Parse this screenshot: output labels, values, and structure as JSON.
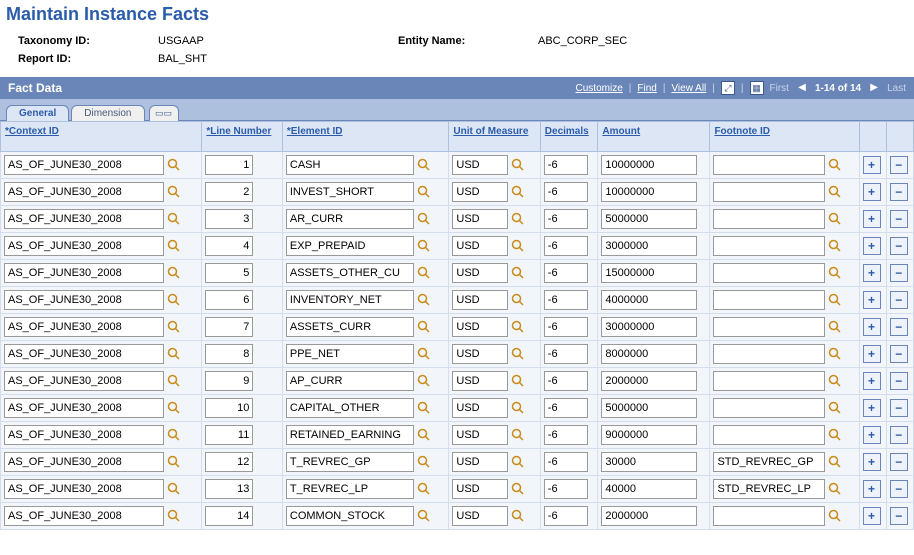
{
  "page_title": "Maintain Instance Facts",
  "header": {
    "taxonomy_label": "Taxonomy ID:",
    "taxonomy_value": "USGAAP",
    "entity_label": "Entity Name:",
    "entity_value": "ABC_CORP_SEC",
    "report_label": "Report ID:",
    "report_value": "BAL_SHT"
  },
  "section": {
    "title": "Fact Data",
    "links": {
      "customize": "Customize",
      "find": "Find",
      "viewall": "View All"
    },
    "nav": {
      "first": "First",
      "range": "1-14 of 14",
      "last": "Last"
    }
  },
  "tabs": {
    "general": "General",
    "dimension": "Dimension"
  },
  "columns": {
    "context": "*Context ID",
    "line": "*Line Number",
    "element": "*Element ID",
    "uom": "Unit of Measure",
    "decimals": "Decimals",
    "amount": "Amount",
    "footnote": "Footnote ID"
  },
  "rows": [
    {
      "context": "AS_OF_JUNE30_2008",
      "line": "1",
      "element": "CASH",
      "uom": "USD",
      "decimals": "-6",
      "amount": "10000000",
      "footnote": ""
    },
    {
      "context": "AS_OF_JUNE30_2008",
      "line": "2",
      "element": "INVEST_SHORT",
      "uom": "USD",
      "decimals": "-6",
      "amount": "10000000",
      "footnote": ""
    },
    {
      "context": "AS_OF_JUNE30_2008",
      "line": "3",
      "element": "AR_CURR",
      "uom": "USD",
      "decimals": "-6",
      "amount": "5000000",
      "footnote": ""
    },
    {
      "context": "AS_OF_JUNE30_2008",
      "line": "4",
      "element": "EXP_PREPAID",
      "uom": "USD",
      "decimals": "-6",
      "amount": "3000000",
      "footnote": ""
    },
    {
      "context": "AS_OF_JUNE30_2008",
      "line": "5",
      "element": "ASSETS_OTHER_CU",
      "uom": "USD",
      "decimals": "-6",
      "amount": "15000000",
      "footnote": ""
    },
    {
      "context": "AS_OF_JUNE30_2008",
      "line": "6",
      "element": "INVENTORY_NET",
      "uom": "USD",
      "decimals": "-6",
      "amount": "4000000",
      "footnote": ""
    },
    {
      "context": "AS_OF_JUNE30_2008",
      "line": "7",
      "element": "ASSETS_CURR",
      "uom": "USD",
      "decimals": "-6",
      "amount": "30000000",
      "footnote": ""
    },
    {
      "context": "AS_OF_JUNE30_2008",
      "line": "8",
      "element": "PPE_NET",
      "uom": "USD",
      "decimals": "-6",
      "amount": "8000000",
      "footnote": ""
    },
    {
      "context": "AS_OF_JUNE30_2008",
      "line": "9",
      "element": "AP_CURR",
      "uom": "USD",
      "decimals": "-6",
      "amount": "2000000",
      "footnote": ""
    },
    {
      "context": "AS_OF_JUNE30_2008",
      "line": "10",
      "element": "CAPITAL_OTHER",
      "uom": "USD",
      "decimals": "-6",
      "amount": "5000000",
      "footnote": ""
    },
    {
      "context": "AS_OF_JUNE30_2008",
      "line": "11",
      "element": "RETAINED_EARNING",
      "uom": "USD",
      "decimals": "-6",
      "amount": "9000000",
      "footnote": ""
    },
    {
      "context": "AS_OF_JUNE30_2008",
      "line": "12",
      "element": "T_REVREC_GP",
      "uom": "USD",
      "decimals": "-6",
      "amount": "30000",
      "footnote": "STD_REVREC_GP"
    },
    {
      "context": "AS_OF_JUNE30_2008",
      "line": "13",
      "element": "T_REVREC_LP",
      "uom": "USD",
      "decimals": "-6",
      "amount": "40000",
      "footnote": "STD_REVREC_LP"
    },
    {
      "context": "AS_OF_JUNE30_2008",
      "line": "14",
      "element": "COMMON_STOCK",
      "uom": "USD",
      "decimals": "-6",
      "amount": "2000000",
      "footnote": ""
    }
  ]
}
